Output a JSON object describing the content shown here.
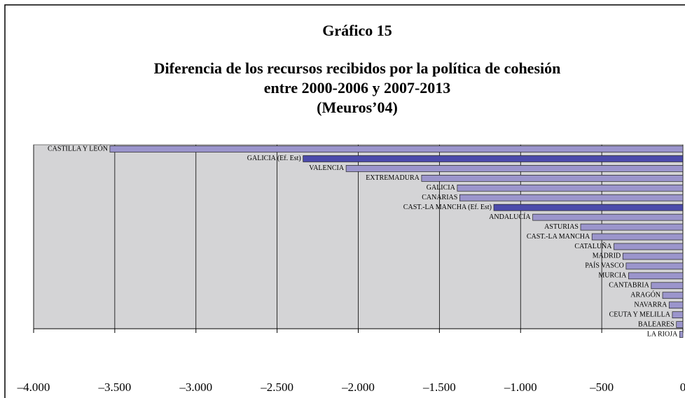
{
  "chart_data": {
    "type": "barh",
    "title": "Gráfico 15",
    "subtitle": [
      "Diferencia de los recursos recibidos por la política de cohesión",
      "entre 2000-2006 y 2007-2013",
      "(Meuros’04)"
    ],
    "categories": [
      "CASTILLA Y LEÓN",
      "GALICIA  (Ef. Est)",
      "VALENCIA",
      "EXTREMADURA",
      "GALICIA",
      "CANARIAS",
      "CAST.-LA MANCHA  (Ef. Est)",
      "ANDALUCÍA",
      "ASTURIAS",
      "CAST.-LA MANCHA",
      "CATALUÑA",
      "MADRID",
      "PAÍS VASCO",
      "MURCIA",
      "CANTABRIA",
      "ARAGÓN",
      "NAVARRA",
      "CEUTA Y MELILLA",
      "BALEARES",
      "LA RIOJA"
    ],
    "values": [
      -3530,
      -2340,
      -2075,
      -1610,
      -1390,
      -1375,
      -1165,
      -925,
      -630,
      -560,
      -425,
      -370,
      -350,
      -335,
      -195,
      -125,
      -85,
      -65,
      -40,
      -20
    ],
    "colors": [
      "#9b95cc",
      "#4c4bab",
      "#9b95cc",
      "#9b95cc",
      "#9b95cc",
      "#9b95cc",
      "#4c4bab",
      "#9b95cc",
      "#9b95cc",
      "#9b95cc",
      "#9b95cc",
      "#9b95cc",
      "#9b95cc",
      "#9b95cc",
      "#9b95cc",
      "#9b95cc",
      "#9b95cc",
      "#9b95cc",
      "#9b95cc",
      "#9b95cc"
    ],
    "xlim": [
      -4000,
      0
    ],
    "xticks": [
      {
        "value": -4000,
        "label": "–4.000"
      },
      {
        "value": -3500,
        "label": "–3.500"
      },
      {
        "value": -3000,
        "label": "–3.000"
      },
      {
        "value": -2500,
        "label": "–2.500"
      },
      {
        "value": -2000,
        "label": "–2.000"
      },
      {
        "value": -1500,
        "label": "–1.500"
      },
      {
        "value": -1000,
        "label": "–1.000"
      },
      {
        "value": -500,
        "label": "–500"
      },
      0
    ],
    "grid": true
  }
}
